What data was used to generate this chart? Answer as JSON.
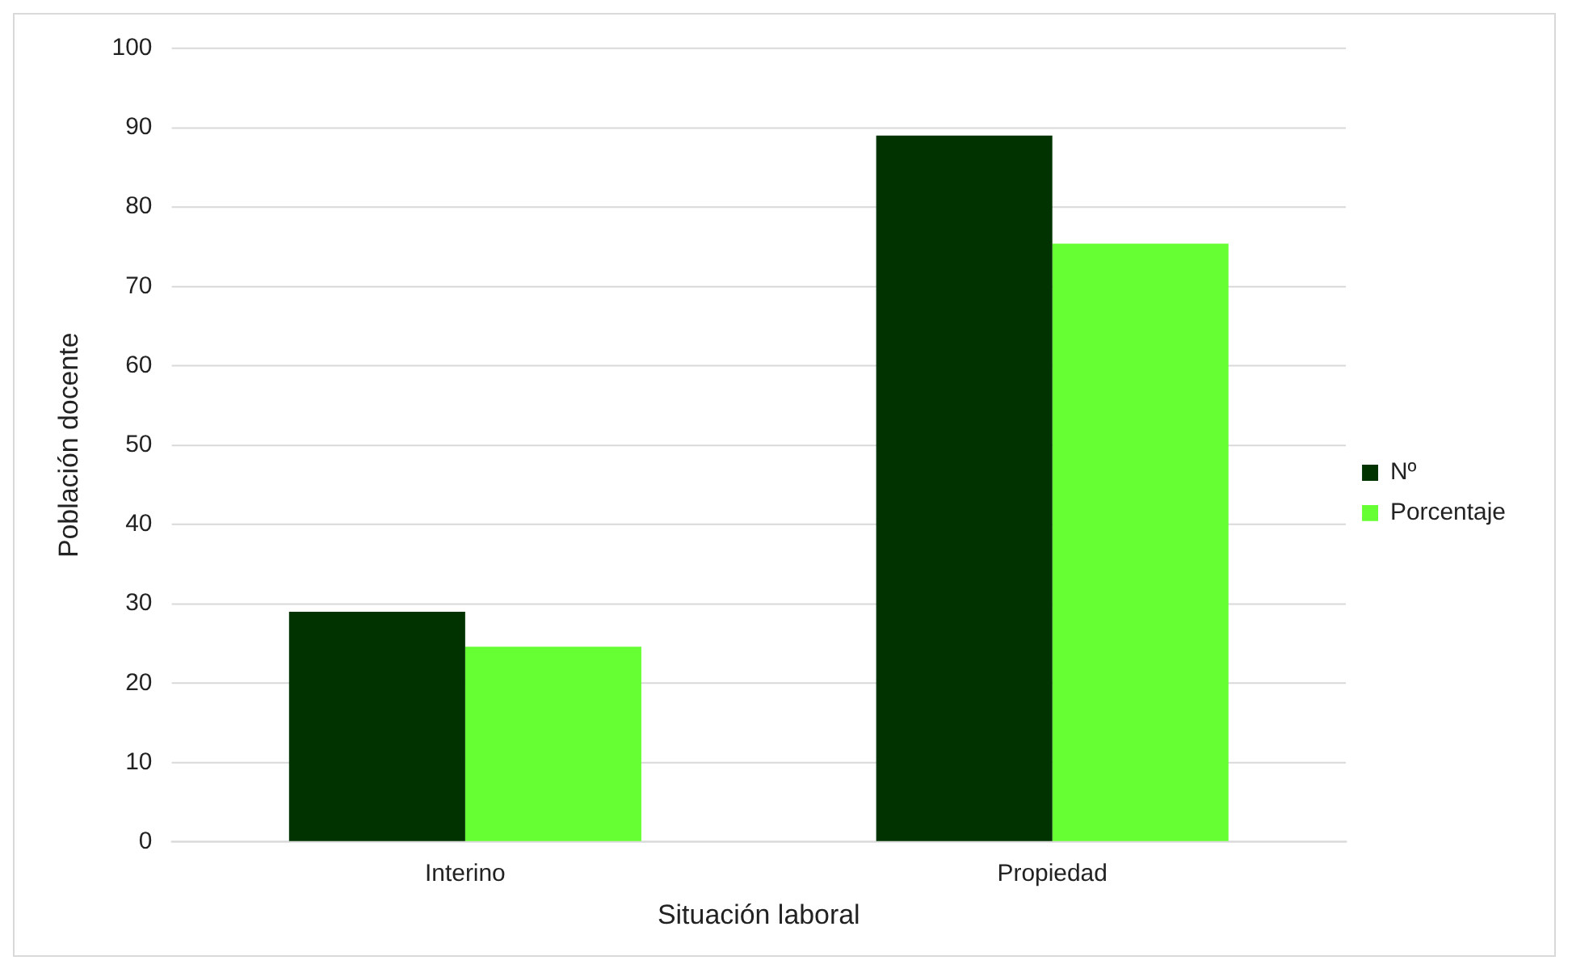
{
  "chart_data": {
    "type": "bar",
    "xlabel": "Situación laboral",
    "ylabel": "Población docente",
    "categories": [
      "Interino",
      "Propiedad"
    ],
    "series": [
      {
        "name": "Nº",
        "color": "#003300",
        "values": [
          29,
          89
        ]
      },
      {
        "name": "Porcentaje",
        "color": "#66ff33",
        "values": [
          24.6,
          75.4
        ]
      }
    ],
    "ylim": [
      0,
      100
    ],
    "yticks": [
      0,
      10,
      20,
      30,
      40,
      50,
      60,
      70,
      80,
      90,
      100
    ],
    "grid": "y",
    "legend": "right"
  }
}
